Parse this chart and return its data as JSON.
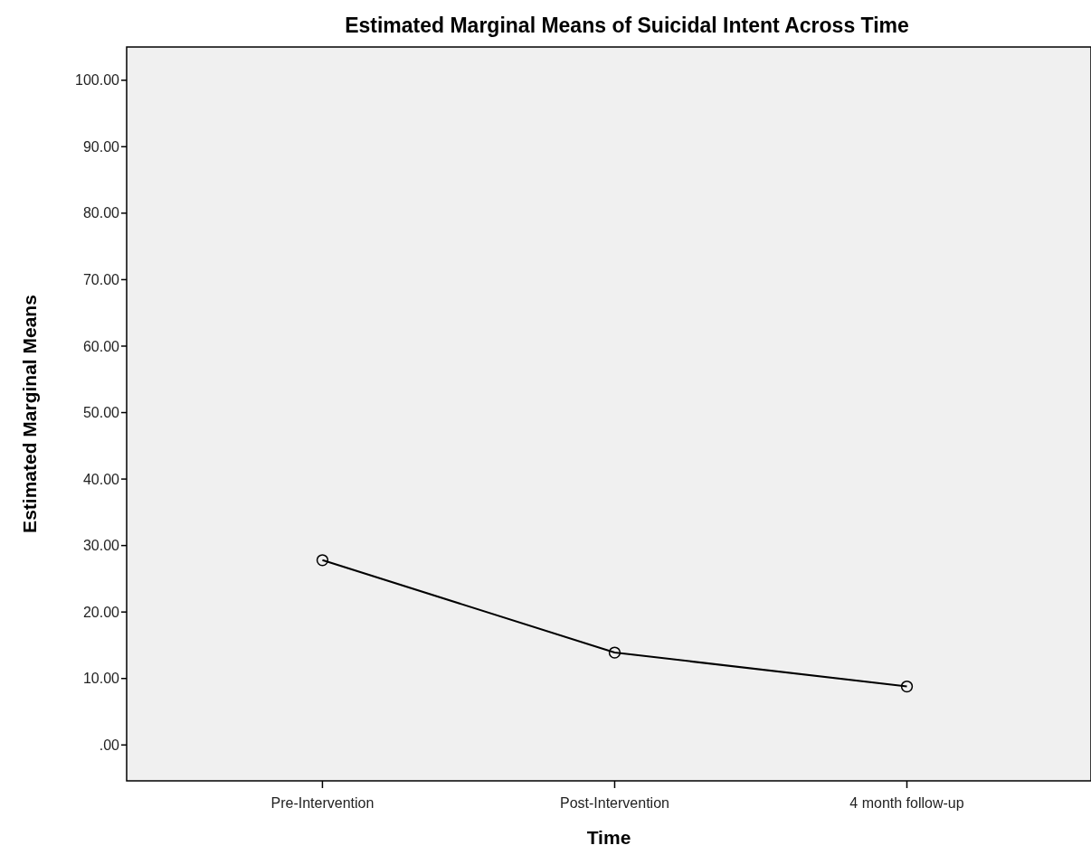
{
  "chart_data": {
    "type": "line",
    "title": "Estimated Marginal Means of Suicidal Intent Across Time",
    "xlabel": "Time",
    "ylabel": "Estimated Marginal Means",
    "categories": [
      "Pre-Intervention",
      "Post-Intervention",
      "4 month follow-up"
    ],
    "series": [
      {
        "color": "#000000",
        "values": [
          27.8,
          13.9,
          8.8
        ]
      }
    ],
    "ylim": [
      -5.4,
      105
    ],
    "yticks": [
      {
        "value": 0,
        "label": ".00"
      },
      {
        "value": 10,
        "label": "10.00"
      },
      {
        "value": 20,
        "label": "20.00"
      },
      {
        "value": 30,
        "label": "30.00"
      },
      {
        "value": 40,
        "label": "40.00"
      },
      {
        "value": 50,
        "label": "50.00"
      },
      {
        "value": 60,
        "label": "60.00"
      },
      {
        "value": 70,
        "label": "70.00"
      },
      {
        "value": 80,
        "label": "80.00"
      },
      {
        "value": 90,
        "label": "90.00"
      },
      {
        "value": 100,
        "label": "100.00"
      }
    ],
    "marker": "circle"
  }
}
